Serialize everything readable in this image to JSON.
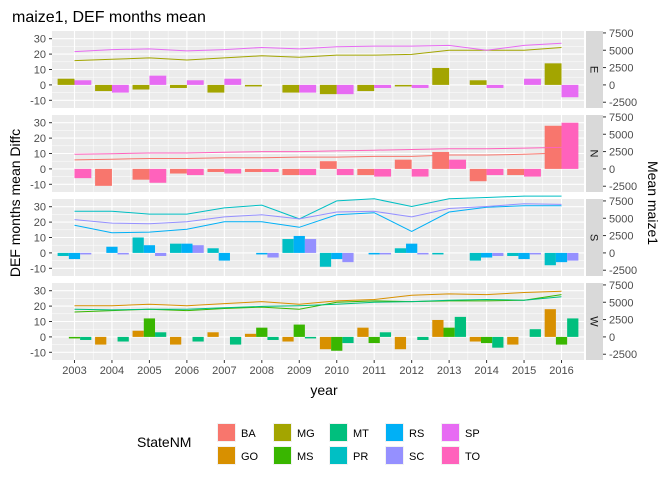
{
  "chart_data": {
    "type": "bar",
    "title": "maize1, DEF months mean",
    "xlabel": "year",
    "ylabel": "DEF months mean Diffc",
    "ylabel_right": "Mean maize1",
    "x": [
      2003,
      2004,
      2005,
      2006,
      2007,
      2008,
      2009,
      2010,
      2011,
      2012,
      2013,
      2014,
      2015,
      2016
    ],
    "ylim": [
      -15,
      35
    ],
    "yticks": [
      -10,
      0,
      10,
      20,
      30
    ],
    "ylim_right": [
      -3333,
      7778
    ],
    "yticks_right": [
      -2500,
      0,
      2500,
      5000,
      7500
    ],
    "legend_title": "StateNM",
    "legend_position": "bottom",
    "legend": [
      {
        "key": "BA",
        "color": "#F8766D"
      },
      {
        "key": "GO",
        "color": "#D89000"
      },
      {
        "key": "MG",
        "color": "#A3A500"
      },
      {
        "key": "MS",
        "color": "#39B600"
      },
      {
        "key": "MT",
        "color": "#00BF7D"
      },
      {
        "key": "PR",
        "color": "#00BFC4"
      },
      {
        "key": "RS",
        "color": "#00B0F6"
      },
      {
        "key": "SC",
        "color": "#9590FF"
      },
      {
        "key": "SP",
        "color": "#E76BF3"
      },
      {
        "key": "TO",
        "color": "#FF62BC"
      }
    ],
    "panels": [
      {
        "facet": "E",
        "bars": [
          {
            "state": "MG",
            "values": [
              4,
              -4,
              -3,
              -2,
              -5,
              -1,
              -5,
              -6,
              -4,
              -1,
              11,
              3,
              0,
              14
            ]
          },
          {
            "state": "SP",
            "values": [
              3,
              -5,
              6,
              3,
              4,
              0,
              -5,
              -6,
              -2,
              -2,
              0,
              -2,
              4,
              -8
            ]
          }
        ],
        "lines": [
          {
            "state": "MG",
            "values": [
              3500,
              3700,
              3900,
              3600,
              3900,
              4200,
              4000,
              4300,
              4300,
              4400,
              5000,
              5000,
              5000,
              5400
            ]
          },
          {
            "state": "SP",
            "values": [
              4800,
              5100,
              5200,
              4900,
              5100,
              5400,
              5200,
              5500,
              5600,
              5600,
              5700,
              5000,
              5700,
              6000
            ]
          }
        ]
      },
      {
        "facet": "N",
        "bars": [
          {
            "state": "BA",
            "values": [
              0,
              -11,
              -7,
              -3,
              -2,
              -2,
              -4,
              5,
              -4,
              6,
              11,
              -8,
              -4,
              28
            ]
          },
          {
            "state": "TO",
            "values": [
              -6,
              0,
              -9,
              -4,
              -3,
              -2,
              -4,
              -4,
              -5,
              -5,
              6,
              -4,
              -5,
              30
            ]
          }
        ],
        "lines": [
          {
            "state": "BA",
            "values": [
              1300,
              1400,
              1500,
              1500,
              1600,
              1600,
              1700,
              1700,
              1800,
              1800,
              2000,
              2000,
              2100,
              2300
            ]
          },
          {
            "state": "TO",
            "values": [
              2100,
              2200,
              2300,
              2300,
              2400,
              2500,
              2500,
              2600,
              2700,
              2800,
              2900,
              2900,
              3000,
              3100
            ]
          }
        ]
      },
      {
        "facet": "S",
        "bars": [
          {
            "state": "PR",
            "values": [
              -2,
              0,
              10,
              6,
              3,
              0,
              9,
              -9,
              0,
              3,
              -1,
              -5,
              -2,
              -8
            ]
          },
          {
            "state": "RS",
            "values": [
              -4,
              4,
              5,
              6,
              -5,
              -1,
              11,
              -4,
              -1,
              6,
              0,
              -3,
              -4,
              -6
            ]
          },
          {
            "state": "SC",
            "values": [
              -1,
              -1,
              -2,
              5,
              0,
              -3,
              9,
              -6,
              -1,
              -1,
              0,
              -2,
              -1,
              -5
            ]
          }
        ],
        "lines": [
          {
            "state": "PR",
            "values": [
              6000,
              6000,
              5600,
              5600,
              6500,
              6900,
              4900,
              7500,
              7800,
              6700,
              7800,
              8000,
              8200,
              8200
            ]
          },
          {
            "state": "RS",
            "values": [
              4000,
              2900,
              3000,
              3400,
              4500,
              4500,
              3700,
              5500,
              5800,
              3100,
              5900,
              6600,
              6800,
              6800
            ]
          },
          {
            "state": "SC",
            "values": [
              4800,
              4300,
              4200,
              4500,
              5200,
              5500,
              4900,
              5900,
              6000,
              5200,
              6400,
              6700,
              7100,
              7000
            ]
          }
        ]
      },
      {
        "facet": "W",
        "bars": [
          {
            "state": "GO",
            "values": [
              0,
              -5,
              4,
              -5,
              3,
              2,
              -3,
              -8,
              6,
              -8,
              11,
              -3,
              -5,
              18
            ]
          },
          {
            "state": "MS",
            "values": [
              -1,
              0,
              12,
              0,
              0,
              6,
              8,
              -9,
              -4,
              0,
              6,
              -4,
              0,
              -5
            ]
          },
          {
            "state": "MT",
            "values": [
              -2,
              -3,
              3,
              -3,
              -5,
              -2,
              -1,
              -4,
              3,
              -2,
              13,
              -7,
              5,
              12
            ]
          }
        ],
        "lines": [
          {
            "state": "GO",
            "values": [
              4500,
              4500,
              4700,
              4500,
              4800,
              5100,
              4700,
              5200,
              5400,
              6000,
              6200,
              6100,
              6400,
              6600
            ]
          },
          {
            "state": "MS",
            "values": [
              3600,
              3800,
              4000,
              3800,
              4100,
              4300,
              4000,
              5000,
              5200,
              5100,
              5200,
              5200,
              5300,
              6100
            ]
          },
          {
            "state": "MT",
            "values": [
              4000,
              3900,
              4000,
              4000,
              4200,
              4400,
              4500,
              4700,
              5000,
              5100,
              5300,
              5400,
              5300,
              5800
            ]
          }
        ]
      }
    ]
  }
}
